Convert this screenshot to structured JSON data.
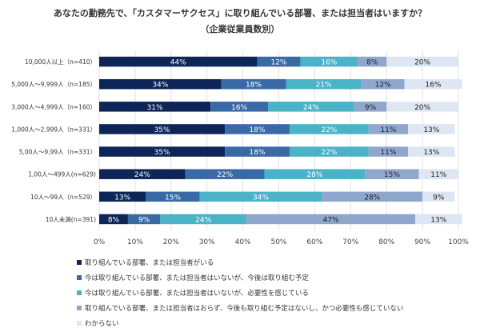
{
  "title_line1": "あなたの勤務先で、「カスタマーサクセス」に取り組んでいる部署、または担当者はいますか？",
  "title_line2": "（企業従業員数別）",
  "chart_data": {
    "type": "bar",
    "orientation": "horizontal",
    "stacked": true,
    "categories": [
      "10,000人以上（n=410）",
      "5,000人～9,999人（n=185）",
      "3,000人～4,999人（n=160）",
      "1,000人～2,999人（n=331）",
      "5,00人～9,99人（n=331）",
      "1,00人～499人(n=629)",
      "10人～99人（n=529）",
      "10人未満(n=391)"
    ],
    "series": [
      {
        "name": "取り組んでいる部署、または担当者がいる",
        "color": "#0d2557",
        "label_color": "#ffffff",
        "values": [
          44,
          34,
          31,
          35,
          35,
          24,
          13,
          8
        ]
      },
      {
        "name": "今は取り組んでいる部署、または担当者はいないが、今後は取り組む予定",
        "color": "#3a6aa6",
        "label_color": "#ffffff",
        "values": [
          12,
          18,
          16,
          18,
          18,
          22,
          15,
          9
        ]
      },
      {
        "name": "今は取り組んでいる部署、または担当者はいないが、必要性を感じている",
        "color": "#4bb3c8",
        "label_color": "#ffffff",
        "values": [
          16,
          21,
          24,
          22,
          22,
          28,
          34,
          24
        ]
      },
      {
        "name": "取り組んでいる部署、または担当者はおらず、今後も取り組む予定はないし、かつ必要性も感じていない",
        "color": "#8fa6cd",
        "label_color": "#222222",
        "values": [
          8,
          12,
          9,
          11,
          11,
          15,
          28,
          47
        ]
      },
      {
        "name": "わからない",
        "color": "#dde6f2",
        "label_color": "#222222",
        "values": [
          20,
          16,
          20,
          13,
          13,
          11,
          9,
          13
        ]
      }
    ],
    "value_suffix": "%",
    "xlim": [
      0,
      100
    ],
    "x_ticks": [
      "0%",
      "10%",
      "20%",
      "30%",
      "40%",
      "50%",
      "60%",
      "70%",
      "80%",
      "90%",
      "100%"
    ],
    "grid": true,
    "legend_position": "bottom-left"
  }
}
